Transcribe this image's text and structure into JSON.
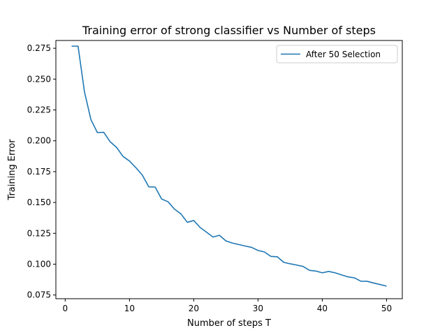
{
  "chart_data": {
    "type": "line",
    "title": "Training error of strong classifier vs Number of steps",
    "xlabel": "Number of steps T",
    "ylabel": "Training Error",
    "xlim": [
      -1.45,
      52.45
    ],
    "ylim": [
      0.072,
      0.2813
    ],
    "xticks": [
      0,
      10,
      20,
      30,
      40,
      50
    ],
    "yticks": [
      0.075,
      0.1,
      0.125,
      0.15,
      0.175,
      0.2,
      0.225,
      0.25,
      0.275
    ],
    "ytick_labels": [
      "0.075",
      "0.100",
      "0.125",
      "0.150",
      "0.175",
      "0.200",
      "0.225",
      "0.250",
      "0.275"
    ],
    "grid": false,
    "legend_position": "upper right",
    "color": "#1f77b4",
    "series": [
      {
        "name": "After 50 Selection",
        "x": [
          1,
          2,
          3,
          4,
          5,
          6,
          7,
          8,
          9,
          10,
          11,
          12,
          13,
          14,
          15,
          16,
          17,
          18,
          19,
          20,
          21,
          22,
          23,
          24,
          25,
          26,
          27,
          28,
          29,
          30,
          31,
          32,
          33,
          34,
          35,
          36,
          37,
          38,
          39,
          40,
          41,
          42,
          43,
          44,
          45,
          46,
          47,
          48,
          49,
          50
        ],
        "y": [
          0.2767,
          0.2767,
          0.2397,
          0.2172,
          0.2067,
          0.2069,
          0.1992,
          0.1946,
          0.1873,
          0.1836,
          0.1782,
          0.1722,
          0.1627,
          0.1625,
          0.1528,
          0.1506,
          0.1446,
          0.1408,
          0.1339,
          0.1354,
          0.1297,
          0.1259,
          0.122,
          0.1234,
          0.1189,
          0.1171,
          0.1159,
          0.1147,
          0.1136,
          0.1111,
          0.1099,
          0.1063,
          0.106,
          0.1015,
          0.1003,
          0.0993,
          0.0982,
          0.095,
          0.0944,
          0.093,
          0.0941,
          0.093,
          0.0913,
          0.0897,
          0.0889,
          0.0862,
          0.0861,
          0.0847,
          0.0835,
          0.0822
        ]
      }
    ]
  }
}
